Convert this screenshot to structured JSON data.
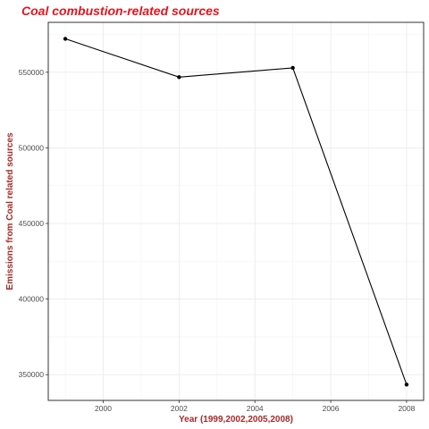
{
  "chart_data": {
    "type": "line",
    "title": "Coal combustion-related sources",
    "xlabel": "Year (1999,2002,2005,2008)",
    "ylabel": "Emissions from Coal related sources",
    "x": [
      1999,
      2002,
      2005,
      2008
    ],
    "series": [
      {
        "values": [
          572126,
          546789,
          552881,
          343432
        ]
      }
    ],
    "xlim": [
      1998.55,
      2008.45
    ],
    "ylim": [
      333000,
      583000
    ],
    "x_ticks": [
      2000,
      2002,
      2004,
      2006,
      2008
    ],
    "x_tick_labels": [
      "2000",
      "2002",
      "2004",
      "2006",
      "2008"
    ],
    "y_ticks": [
      350000,
      400000,
      450000,
      500000,
      550000
    ],
    "y_tick_labels": [
      "350000",
      "400000",
      "450000",
      "500000",
      "550000"
    ],
    "grid": true,
    "colors": {
      "title": "#e8131d",
      "axis_title": "#a52a2a",
      "line": "#000000"
    }
  }
}
